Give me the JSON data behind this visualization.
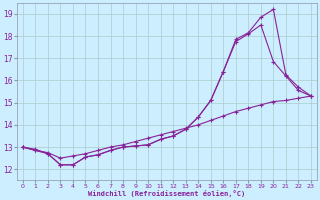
{
  "xlabel": "Windchill (Refroidissement éolien,°C)",
  "background_color": "#cceeff",
  "grid_color": "#aacccc",
  "line_color": "#882299",
  "xlim": [
    -0.5,
    23.5
  ],
  "ylim": [
    11.5,
    19.5
  ],
  "xticks": [
    0,
    1,
    2,
    3,
    4,
    5,
    6,
    7,
    8,
    9,
    10,
    11,
    12,
    13,
    14,
    15,
    16,
    17,
    18,
    19,
    20,
    21,
    22,
    23
  ],
  "yticks": [
    12,
    13,
    14,
    15,
    16,
    17,
    18,
    19
  ],
  "line1_x": [
    0,
    1,
    2,
    3,
    4,
    5,
    6,
    7,
    8,
    9,
    10,
    11,
    12,
    13,
    14,
    15,
    16,
    17,
    18,
    19,
    20,
    21,
    22,
    23
  ],
  "line1_y": [
    13.0,
    12.9,
    12.7,
    12.2,
    12.2,
    12.55,
    12.65,
    12.85,
    13.0,
    13.05,
    13.1,
    13.35,
    13.5,
    13.8,
    14.35,
    15.1,
    16.4,
    17.85,
    18.15,
    18.85,
    19.2,
    16.25,
    15.7,
    15.3
  ],
  "line2_x": [
    0,
    1,
    2,
    3,
    4,
    5,
    6,
    7,
    8,
    9,
    10,
    11,
    12,
    13,
    14,
    15,
    16,
    17,
    18,
    19,
    20,
    21,
    22,
    23
  ],
  "line2_y": [
    13.0,
    12.85,
    12.7,
    12.2,
    12.2,
    12.55,
    12.65,
    12.85,
    13.0,
    13.05,
    13.1,
    13.35,
    13.5,
    13.8,
    14.35,
    15.1,
    16.4,
    17.75,
    18.1,
    18.5,
    16.85,
    16.2,
    15.55,
    15.3
  ],
  "line3_x": [
    0,
    1,
    2,
    3,
    4,
    5,
    6,
    7,
    8,
    9,
    10,
    11,
    12,
    13,
    14,
    15,
    16,
    17,
    18,
    19,
    20,
    21,
    22,
    23
  ],
  "line3_y": [
    13.0,
    12.85,
    12.75,
    12.5,
    12.6,
    12.7,
    12.85,
    13.0,
    13.1,
    13.25,
    13.4,
    13.55,
    13.7,
    13.85,
    14.0,
    14.2,
    14.4,
    14.6,
    14.75,
    14.9,
    15.05,
    15.1,
    15.2,
    15.3
  ]
}
